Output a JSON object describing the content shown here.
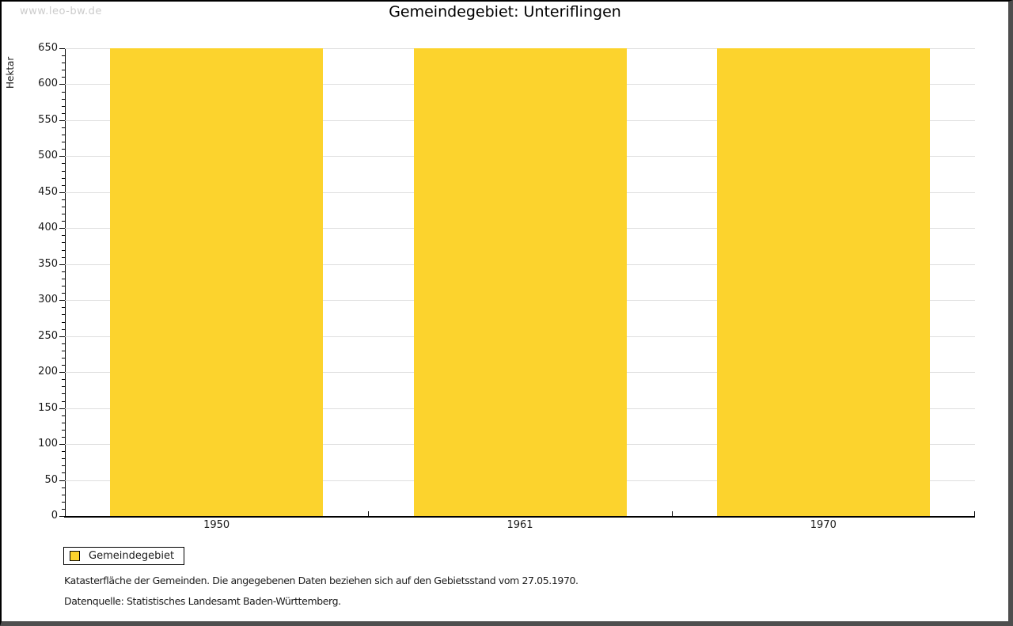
{
  "watermark": "www.leo-bw.de",
  "title": "Gemeindegebiet: Unteriflingen",
  "chart_data": {
    "type": "bar",
    "title": "Gemeindegebiet: Unteriflingen",
    "categories": [
      "1950",
      "1961",
      "1970"
    ],
    "series": [
      {
        "name": "Gemeindegebiet",
        "color": "#fcd32d",
        "values": [
          650,
          650,
          650
        ]
      }
    ],
    "xlabel": "",
    "ylabel": "Hektar",
    "ylim": [
      0,
      650
    ],
    "ytick_major_step": 50,
    "ytick_minor_step": 10,
    "grid": true,
    "legend_position": "bottom-left"
  },
  "legend": {
    "items": [
      {
        "label": "Gemeindegebiet",
        "color": "#fcd32d"
      }
    ]
  },
  "footnotes": [
    "Katasterfläche der Gemeinden. Die angegebenen Daten beziehen sich auf den Gebietsstand vom 27.05.1970.",
    "Datenquelle: Statistisches Landesamt Baden-Württemberg."
  ],
  "colors": {
    "bar": "#fcd32d",
    "gridline": "#dedede",
    "axis": "#000000",
    "watermark": "#cccccc",
    "frame_shadow": "#4e4e4e"
  }
}
